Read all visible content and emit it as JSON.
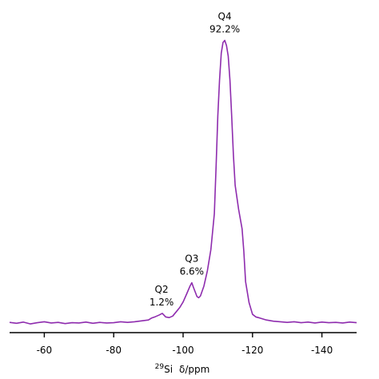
{
  "chart_data": {
    "type": "line",
    "title": "",
    "xlabel": {
      "isotope_mass": "29",
      "nucleus": "Si",
      "quantity": "δ/ppm"
    },
    "ylabel": "",
    "xlim": [
      -50,
      -150
    ],
    "ylim": [
      0,
      100
    ],
    "x_reversed": true,
    "grid": false,
    "legend": "none",
    "x_ticks": [
      {
        "value": -60,
        "label": "-60"
      },
      {
        "value": -80,
        "label": "-80"
      },
      {
        "value": -100,
        "label": "-100"
      },
      {
        "value": -120,
        "label": "-120"
      },
      {
        "value": -140,
        "label": "-140"
      }
    ],
    "line_color": "#8e2cae",
    "axis_color": "#000000",
    "series": [
      {
        "x": [
          -50,
          -52,
          -54,
          -56,
          -58,
          -60,
          -62,
          -64,
          -66,
          -68,
          -70,
          -72,
          -74,
          -76,
          -78,
          -80,
          -82,
          -84,
          -86,
          -88,
          -90,
          -91,
          -92,
          -93,
          -94,
          -95,
          -96,
          -97,
          -98,
          -99,
          -100,
          -101,
          -102,
          -102.5,
          -103,
          -104,
          -104.5,
          -105,
          -106,
          -107,
          -108,
          -109,
          -109.5,
          -110,
          -110.5,
          -111,
          -111.5,
          -112,
          -112.5,
          -113,
          -113.5,
          -114,
          -114.5,
          -115,
          -116,
          -117,
          -117.5,
          -118,
          -119,
          -120,
          -121,
          -122,
          -124,
          -126,
          -128,
          -130,
          -132,
          -134,
          -136,
          -138,
          -140,
          -142,
          -144,
          -146,
          -148,
          -150
        ],
        "y": [
          3.4,
          3.1,
          3.5,
          2.9,
          3.3,
          3.6,
          3.2,
          3.4,
          3.0,
          3.3,
          3.2,
          3.5,
          3.1,
          3.4,
          3.2,
          3.3,
          3.6,
          3.4,
          3.6,
          3.9,
          4.2,
          4.9,
          5.3,
          5.8,
          6.4,
          5.2,
          5.0,
          5.5,
          6.9,
          8.3,
          10.2,
          12.8,
          15.5,
          16.6,
          15.0,
          12.0,
          11.6,
          12.2,
          15.5,
          20.6,
          27.6,
          39.5,
          55.0,
          72.0,
          84.0,
          93.0,
          96.5,
          97.2,
          95.5,
          92.0,
          84.0,
          72.0,
          59.0,
          49.0,
          41.0,
          34.5,
          27.0,
          17.0,
          10.0,
          6.1,
          5.2,
          4.9,
          4.2,
          3.8,
          3.6,
          3.4,
          3.6,
          3.3,
          3.5,
          3.2,
          3.5,
          3.3,
          3.4,
          3.2,
          3.5,
          3.3
        ]
      }
    ],
    "annotations": [
      {
        "label": "Q4",
        "value": "92.2%",
        "x": -112,
        "y": 97.2
      },
      {
        "label": "Q3",
        "value": "6.6%",
        "x": -102.5,
        "y": 16.6
      },
      {
        "label": "Q2",
        "value": "1.2%",
        "x": -93.8,
        "y": 6.4
      }
    ]
  }
}
